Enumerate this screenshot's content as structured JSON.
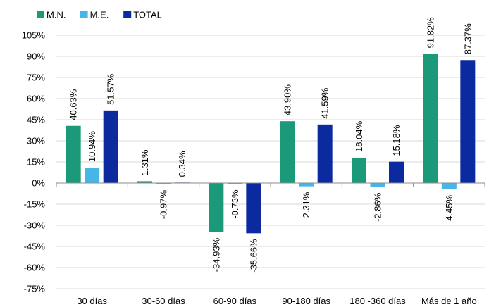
{
  "chart_data": {
    "type": "bar",
    "categories": [
      "30 días",
      "30-60 días",
      "60-90 días",
      "90-180 días",
      "180 -360 días",
      "Más de 1 año"
    ],
    "series": [
      {
        "name": "M.N.",
        "color": "#1a9a78",
        "values": [
          40.63,
          1.31,
          -34.93,
          43.9,
          18.04,
          91.82
        ],
        "labels": [
          "40.63%",
          "1.31%",
          "-34.93%",
          "43.90%",
          "18.04%",
          "91.82%"
        ]
      },
      {
        "name": "M.E.",
        "color": "#45b6e6",
        "values": [
          10.94,
          -0.97,
          -0.73,
          -2.31,
          -2.86,
          -4.45
        ],
        "labels": [
          "10.94%",
          "-0.97%",
          "-0.73%",
          "-2.31%",
          "-2.86%",
          "-4.45%"
        ]
      },
      {
        "name": "TOTAL",
        "color": "#0b2aa0",
        "values": [
          51.57,
          0.34,
          -35.66,
          41.59,
          15.18,
          87.37
        ],
        "labels": [
          "51.57%",
          "0.34%",
          "-35.66%",
          "41.59%",
          "15.18%",
          "87.37%"
        ]
      }
    ],
    "yticks": [
      105,
      90,
      75,
      60,
      45,
      30,
      15,
      0,
      -15,
      -30,
      -45,
      -60,
      -75
    ],
    "ytick_labels": [
      "105%",
      "90%",
      "75%",
      "60%",
      "45%",
      "30%",
      "15%",
      "0%",
      "-15%",
      "-30%",
      "-45%",
      "-60%",
      "-75%"
    ],
    "ylim": [
      -75,
      105
    ],
    "grid": true,
    "legend": "top-left"
  }
}
